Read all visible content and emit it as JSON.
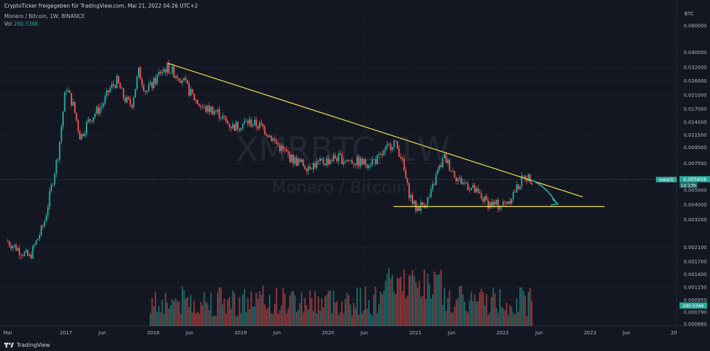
{
  "header": {
    "published": "CryptoTicker freigegeben für TradingView.com, Mai 21, 2022 04:26 UTC+2",
    "symbol_line": "Monero / Bitcoin, 1W, BINANCE",
    "vol_label": "Vol",
    "vol_value": "290.536K"
  },
  "watermark": {
    "ticker": "XMRBTC, 1W",
    "name": "Monero / Bitcoin"
  },
  "footer": {
    "brand": "TradingView"
  },
  "axis": {
    "unit": "BTC"
  },
  "colors": {
    "background": "#131722",
    "up": "#26a69a",
    "down": "#ef5350",
    "trendline": "#f5e54a",
    "arrow": "#26a69a",
    "grid": "#1f2433"
  },
  "chart_data": {
    "type": "candlestick",
    "title": "Monero / Bitcoin, 1W, BINANCE",
    "price_scale": "log",
    "y_ticks": [
      "0.060000",
      "0.040000",
      "0.032000",
      "0.026000",
      "0.021000",
      "0.017000",
      "0.014000",
      "0.011500",
      "0.009500",
      "0.007500",
      "0.005000",
      "0.004000",
      "0.003200",
      "0.002100",
      "0.001700",
      "0.001400",
      "0.001150",
      "0.000950",
      "0.000790",
      "0.000660"
    ],
    "x_ticks": [
      "Mai",
      "2017",
      "Jun",
      "2018",
      "Jun",
      "2019",
      "Jun",
      "2020",
      "Jun",
      "2021",
      "Jun",
      "2022",
      "Jun",
      "2023",
      "Jun",
      "20"
    ],
    "last_price_label": "XMRBTC",
    "last_price_value": "0.005859",
    "countdown": "1d 23h",
    "volume_label": "290.536K",
    "trendlines": [
      {
        "name": "descending resistance",
        "from": [
          "2018-03",
          0.034
        ],
        "to": [
          "2022-12",
          0.0045
        ]
      },
      {
        "name": "horizontal support",
        "from": [
          "2020-10",
          0.0039
        ],
        "to": [
          "2023-03",
          0.0039
        ]
      }
    ],
    "projection": "arrow pointing down toward support",
    "price_path": [
      [
        "2016-05",
        0.0023
      ],
      [
        "2016-08",
        0.0018
      ],
      [
        "2016-10",
        0.003
      ],
      [
        "2016-12",
        0.009
      ],
      [
        "2017-01",
        0.024
      ],
      [
        "2017-02",
        0.018
      ],
      [
        "2017-03",
        0.011
      ],
      [
        "2017-04",
        0.014
      ],
      [
        "2017-05",
        0.016
      ],
      [
        "2017-06",
        0.018
      ],
      [
        "2017-07",
        0.023
      ],
      [
        "2017-08",
        0.026
      ],
      [
        "2017-09",
        0.02
      ],
      [
        "2017-10",
        0.018
      ],
      [
        "2017-11",
        0.03
      ],
      [
        "2017-12",
        0.022
      ],
      [
        "2018-01",
        0.025
      ],
      [
        "2018-02",
        0.03
      ],
      [
        "2018-03",
        0.032
      ],
      [
        "2018-04",
        0.029
      ],
      [
        "2018-05",
        0.027
      ],
      [
        "2018-06",
        0.022
      ],
      [
        "2018-07",
        0.019
      ],
      [
        "2018-08",
        0.017
      ],
      [
        "2018-09",
        0.017
      ],
      [
        "2018-10",
        0.016
      ],
      [
        "2018-11",
        0.014
      ],
      [
        "2018-12",
        0.013
      ],
      [
        "2019-02",
        0.014
      ],
      [
        "2019-04",
        0.013
      ],
      [
        "2019-06",
        0.01
      ],
      [
        "2019-08",
        0.008
      ],
      [
        "2019-10",
        0.0072
      ],
      [
        "2019-12",
        0.0075
      ],
      [
        "2020-02",
        0.0082
      ],
      [
        "2020-04",
        0.0078
      ],
      [
        "2020-06",
        0.0075
      ],
      [
        "2020-08",
        0.008
      ],
      [
        "2020-10",
        0.0105
      ],
      [
        "2020-11",
        0.0085
      ],
      [
        "2020-12",
        0.005
      ],
      [
        "2021-01",
        0.0038
      ],
      [
        "2021-02",
        0.004
      ],
      [
        "2021-03",
        0.0045
      ],
      [
        "2021-04",
        0.0065
      ],
      [
        "2021-05",
        0.0082
      ],
      [
        "2021-06",
        0.0068
      ],
      [
        "2021-07",
        0.0058
      ],
      [
        "2021-08",
        0.0055
      ],
      [
        "2021-09",
        0.005
      ],
      [
        "2021-10",
        0.0045
      ],
      [
        "2021-11",
        0.0041
      ],
      [
        "2021-12",
        0.004
      ],
      [
        "2022-01",
        0.004
      ],
      [
        "2022-02",
        0.0044
      ],
      [
        "2022-03",
        0.0052
      ],
      [
        "2022-04",
        0.0062
      ],
      [
        "2022-05",
        0.0059
      ]
    ]
  }
}
